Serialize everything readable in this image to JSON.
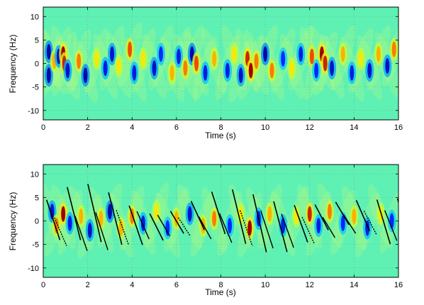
{
  "chart_data": [
    {
      "type": "heatmap",
      "xlabel": "Time (s)",
      "ylabel": "Frequency (Hz)",
      "xlim": [
        0,
        16
      ],
      "ylim": [
        -12,
        12
      ],
      "xticks": [
        0,
        2,
        4,
        6,
        8,
        10,
        12,
        14,
        16
      ],
      "yticks": [
        10,
        5,
        0,
        -5,
        -10
      ],
      "grid": true,
      "background_color": "#5ff0b4",
      "blobs": [
        {
          "t": 0.25,
          "f": 2.5,
          "v": -0.9
        },
        {
          "t": 0.25,
          "f": -2.5,
          "v": -0.9
        },
        {
          "t": 0.5,
          "f": 0.5,
          "v": 0.6
        },
        {
          "t": 0.7,
          "f": 1.5,
          "v": -0.8
        },
        {
          "t": 0.9,
          "f": 2,
          "v": 1
        },
        {
          "t": 0.95,
          "f": 0,
          "v": 0.9
        },
        {
          "t": 1.1,
          "f": -1.5,
          "v": -0.8
        },
        {
          "t": 1.6,
          "f": 0.5,
          "v": 0.7
        },
        {
          "t": 1.9,
          "f": -2.5,
          "v": -0.9
        },
        {
          "t": 2.4,
          "f": 1,
          "v": 0.5
        },
        {
          "t": 2.8,
          "f": -1,
          "v": -0.7
        },
        {
          "t": 3.1,
          "f": 2,
          "v": -0.8
        },
        {
          "t": 3.4,
          "f": -0.5,
          "v": 0.5
        },
        {
          "t": 3.9,
          "f": 3,
          "v": 0.8
        },
        {
          "t": 4.1,
          "f": -2,
          "v": -0.7
        },
        {
          "t": 4.5,
          "f": 1,
          "v": 0.5
        },
        {
          "t": 5.0,
          "f": -1,
          "v": -0.8
        },
        {
          "t": 5.3,
          "f": 2,
          "v": -0.6
        },
        {
          "t": 5.8,
          "f": -2,
          "v": 0.6
        },
        {
          "t": 6.1,
          "f": 1.5,
          "v": -0.7
        },
        {
          "t": 6.4,
          "f": -1,
          "v": 0.7
        },
        {
          "t": 6.7,
          "f": 2,
          "v": -0.9
        },
        {
          "t": 6.9,
          "f": 0,
          "v": 0.8
        },
        {
          "t": 7.3,
          "f": -2,
          "v": -0.7
        },
        {
          "t": 7.7,
          "f": 1,
          "v": 0.6
        },
        {
          "t": 8.3,
          "f": -1.5,
          "v": -0.7
        },
        {
          "t": 8.6,
          "f": 2,
          "v": 0.5
        },
        {
          "t": 8.9,
          "f": -2.5,
          "v": -0.8
        },
        {
          "t": 9.2,
          "f": 1,
          "v": 0.9
        },
        {
          "t": 9.35,
          "f": -1.5,
          "v": 1
        },
        {
          "t": 9.6,
          "f": 0.5,
          "v": 0.7
        },
        {
          "t": 10.0,
          "f": 2,
          "v": -0.9
        },
        {
          "t": 10.3,
          "f": -1.5,
          "v": 0.7
        },
        {
          "t": 10.8,
          "f": 1,
          "v": -0.6
        },
        {
          "t": 11.2,
          "f": -1,
          "v": 0.5
        },
        {
          "t": 11.6,
          "f": 2,
          "v": -0.7
        },
        {
          "t": 12.1,
          "f": 1.5,
          "v": 0.8
        },
        {
          "t": 12.3,
          "f": -1.5,
          "v": -0.6
        },
        {
          "t": 12.55,
          "f": 2,
          "v": 1
        },
        {
          "t": 12.7,
          "f": 0,
          "v": 0.9
        },
        {
          "t": 13.0,
          "f": -1,
          "v": -0.8
        },
        {
          "t": 13.5,
          "f": 2,
          "v": 0.6
        },
        {
          "t": 13.9,
          "f": -2,
          "v": -0.7
        },
        {
          "t": 14.3,
          "f": 1,
          "v": 0.5
        },
        {
          "t": 14.7,
          "f": -1.5,
          "v": -0.8
        },
        {
          "t": 15.1,
          "f": 2,
          "v": 0.6
        },
        {
          "t": 15.5,
          "f": -0.5,
          "v": -0.8
        },
        {
          "t": 15.8,
          "f": 3,
          "v": 0.7
        }
      ]
    },
    {
      "type": "heatmap",
      "xlabel": "Time (s)",
      "ylabel": "Frequency (Hz)",
      "xlim": [
        0,
        16
      ],
      "ylim": [
        -12,
        12
      ],
      "xticks": [
        0,
        2,
        4,
        6,
        8,
        10,
        12,
        14,
        16
      ],
      "yticks": [
        10,
        5,
        0,
        -5,
        -10
      ],
      "grid": true,
      "background_color": "#5ff0b4",
      "overlay_curve_color": "#000000",
      "blobs": [
        {
          "t": 0.4,
          "f": 2,
          "v": -0.8
        },
        {
          "t": 0.6,
          "f": -1,
          "v": 0.7
        },
        {
          "t": 0.9,
          "f": 1.5,
          "v": 1
        },
        {
          "t": 1.2,
          "f": -0.5,
          "v": -0.7
        },
        {
          "t": 1.7,
          "f": 1,
          "v": 0.6
        },
        {
          "t": 2.1,
          "f": -2,
          "v": -0.8
        },
        {
          "t": 2.6,
          "f": 0.5,
          "v": 0.6
        },
        {
          "t": 3.0,
          "f": 2,
          "v": -0.9
        },
        {
          "t": 3.5,
          "f": -1.5,
          "v": 0.6
        },
        {
          "t": 4.0,
          "f": 1,
          "v": 0.7
        },
        {
          "t": 4.5,
          "f": -0.5,
          "v": -0.7
        },
        {
          "t": 5.1,
          "f": 2,
          "v": 0.5
        },
        {
          "t": 5.6,
          "f": -1.5,
          "v": -0.6
        },
        {
          "t": 6.0,
          "f": 0.5,
          "v": 0.6
        },
        {
          "t": 6.6,
          "f": 1.5,
          "v": -0.8
        },
        {
          "t": 7.2,
          "f": -1,
          "v": 0.6
        },
        {
          "t": 7.7,
          "f": 0.5,
          "v": 0.7
        },
        {
          "t": 8.4,
          "f": -1,
          "v": -0.6
        },
        {
          "t": 8.9,
          "f": 1.5,
          "v": 0.5
        },
        {
          "t": 9.3,
          "f": -1.5,
          "v": 1
        },
        {
          "t": 9.7,
          "f": 0.5,
          "v": -0.7
        },
        {
          "t": 10.2,
          "f": 1.5,
          "v": 0.6
        },
        {
          "t": 10.8,
          "f": -1,
          "v": -0.7
        },
        {
          "t": 11.4,
          "f": 1,
          "v": 0.5
        },
        {
          "t": 12.0,
          "f": 1.5,
          "v": 0.9
        },
        {
          "t": 12.4,
          "f": -1,
          "v": -0.7
        },
        {
          "t": 12.9,
          "f": 2,
          "v": 0.7
        },
        {
          "t": 13.5,
          "f": -0.5,
          "v": -0.6
        },
        {
          "t": 14.0,
          "f": 1,
          "v": 0.6
        },
        {
          "t": 14.6,
          "f": -1.5,
          "v": -0.7
        },
        {
          "t": 15.2,
          "f": 1.5,
          "v": 0.5
        },
        {
          "t": 15.7,
          "f": 0,
          "v": -0.6
        }
      ]
    }
  ]
}
